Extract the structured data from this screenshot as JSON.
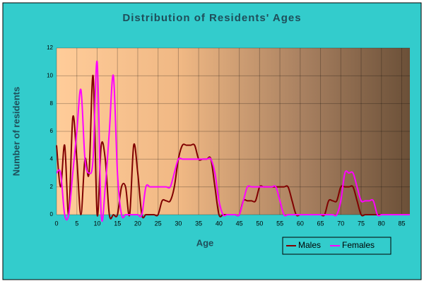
{
  "chart_data": {
    "type": "line",
    "title": "Distribution of Residents' Ages",
    "x_label": "Age",
    "y_label": "Number of residents",
    "x": [
      0,
      1,
      2,
      3,
      4,
      5,
      6,
      7,
      8,
      9,
      10,
      11,
      12,
      13,
      14,
      15,
      16,
      17,
      18,
      19,
      20,
      21,
      22,
      23,
      24,
      25,
      26,
      27,
      28,
      29,
      30,
      31,
      32,
      33,
      34,
      35,
      36,
      37,
      38,
      39,
      40,
      41,
      42,
      43,
      44,
      45,
      46,
      47,
      48,
      49,
      50,
      51,
      52,
      53,
      54,
      55,
      56,
      57,
      58,
      59,
      60,
      61,
      62,
      63,
      64,
      65,
      66,
      67,
      68,
      69,
      70,
      71,
      72,
      73,
      74,
      75,
      76,
      77,
      78,
      79,
      80,
      81,
      82,
      83,
      84,
      85,
      86,
      87
    ],
    "series": [
      {
        "name": "Males",
        "color": "#800000",
        "values": [
          5,
          2,
          5,
          0,
          7,
          4,
          0,
          4,
          3,
          10,
          0,
          5,
          4,
          0,
          0,
          0,
          2,
          2,
          0,
          5,
          3,
          0,
          0,
          0,
          0,
          0,
          1,
          1,
          1,
          2,
          4,
          5,
          5,
          5,
          5,
          4,
          4,
          4,
          4,
          2,
          0,
          0,
          0,
          0,
          0,
          0,
          1,
          1,
          1,
          1,
          2,
          2,
          2,
          2,
          2,
          2,
          2,
          2,
          1,
          0,
          0,
          0,
          0,
          0,
          0,
          0,
          0,
          1,
          1,
          1,
          2,
          2,
          2,
          2,
          1,
          0,
          0,
          0,
          0,
          0,
          0,
          0,
          0,
          0,
          0,
          0,
          0,
          0
        ]
      },
      {
        "name": "Females",
        "color": "#ff00ff",
        "values": [
          3,
          3,
          0,
          0,
          3,
          6,
          9,
          4,
          3,
          4,
          11,
          0,
          2,
          6,
          10,
          3,
          0,
          0,
          0,
          0,
          0,
          0,
          2,
          2,
          2,
          2,
          2,
          2,
          2,
          3,
          4,
          4,
          4,
          4,
          4,
          4,
          4,
          4,
          4,
          3,
          1,
          0,
          0,
          0,
          0,
          0,
          1,
          2,
          2,
          2,
          2,
          2,
          2,
          2,
          2,
          1,
          0,
          0,
          0,
          0,
          0,
          0,
          0,
          0,
          0,
          0,
          0,
          0,
          0,
          0,
          1,
          3,
          3,
          3,
          2,
          1,
          1,
          1,
          1,
          0,
          0,
          0,
          0,
          0,
          0,
          0,
          0,
          0
        ]
      }
    ],
    "xlim": [
      0,
      87
    ],
    "ylim": [
      0,
      12
    ],
    "xticks": [
      0,
      5,
      10,
      15,
      20,
      25,
      30,
      35,
      40,
      45,
      50,
      55,
      60,
      65,
      70,
      75,
      80,
      85
    ],
    "yticks": [
      0,
      2,
      4,
      6,
      8,
      10,
      12
    ],
    "grid": true,
    "legend": "bottom-right"
  }
}
